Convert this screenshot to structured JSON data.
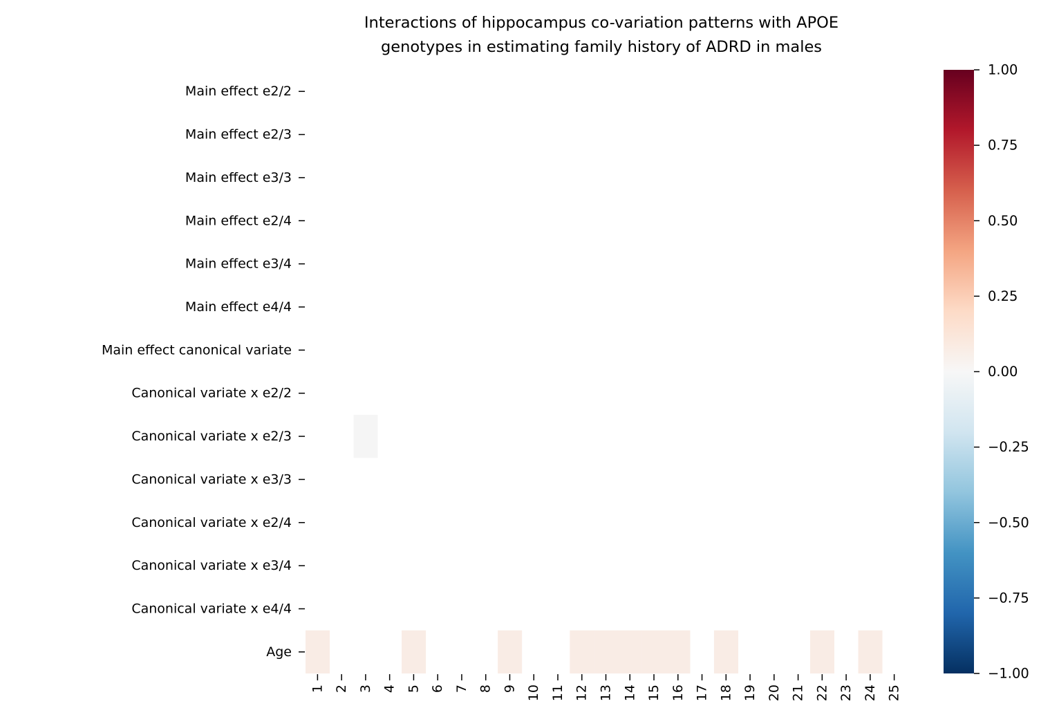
{
  "chart_data": {
    "type": "heatmap",
    "title_lines": [
      "Interactions of hippocampus co-variation patterns with APOE",
      "genotypes in estimating family history of ADRD in males"
    ],
    "rows": [
      "Main effect e2/2",
      "Main effect e2/3",
      "Main effect e3/3",
      "Main effect e2/4",
      "Main effect e3/4",
      "Main effect e4/4",
      "Main effect canonical variate",
      "Canonical variate x e2/2",
      "Canonical variate x e2/3",
      "Canonical variate x e3/3",
      "Canonical variate x e2/4",
      "Canonical variate x e3/4",
      "Canonical variate x e4/4",
      "Age"
    ],
    "columns": [
      "1",
      "2",
      "3",
      "4",
      "5",
      "6",
      "7",
      "8",
      "9",
      "10",
      "11",
      "12",
      "13",
      "14",
      "15",
      "16",
      "17",
      "18",
      "19",
      "20",
      "21",
      "22",
      "23",
      "24",
      "25"
    ],
    "colormap": "RdBu_r",
    "vmin": -1.0,
    "vmax": 1.0,
    "colorbar_ticks": [
      "−1.00",
      "−0.75",
      "−0.50",
      "−0.25",
      "0.00",
      "0.25",
      "0.50",
      "0.75",
      "1.00"
    ],
    "colorbar_tick_values": [
      -1.0,
      -0.75,
      -0.5,
      -0.25,
      0.0,
      0.25,
      0.5,
      0.75,
      1.0
    ],
    "cells": [
      {
        "row": "Canonical variate x e2/3",
        "column": "3",
        "value": 0.03
      },
      {
        "row": "Age",
        "column": "1",
        "value": 0.05
      },
      {
        "row": "Age",
        "column": "5",
        "value": 0.05
      },
      {
        "row": "Age",
        "column": "9",
        "value": 0.05
      },
      {
        "row": "Age",
        "column": "12",
        "value": 0.05
      },
      {
        "row": "Age",
        "column": "13",
        "value": 0.05
      },
      {
        "row": "Age",
        "column": "14",
        "value": 0.05
      },
      {
        "row": "Age",
        "column": "15",
        "value": 0.05
      },
      {
        "row": "Age",
        "column": "16",
        "value": 0.05
      },
      {
        "row": "Age",
        "column": "18",
        "value": 0.05
      },
      {
        "row": "Age",
        "column": "22",
        "value": 0.05
      },
      {
        "row": "Age",
        "column": "24",
        "value": 0.05
      }
    ],
    "cell_colors": {
      "Canonical variate x e2/3|3": "#f5f5f5",
      "Age": "#f9ece5"
    }
  }
}
